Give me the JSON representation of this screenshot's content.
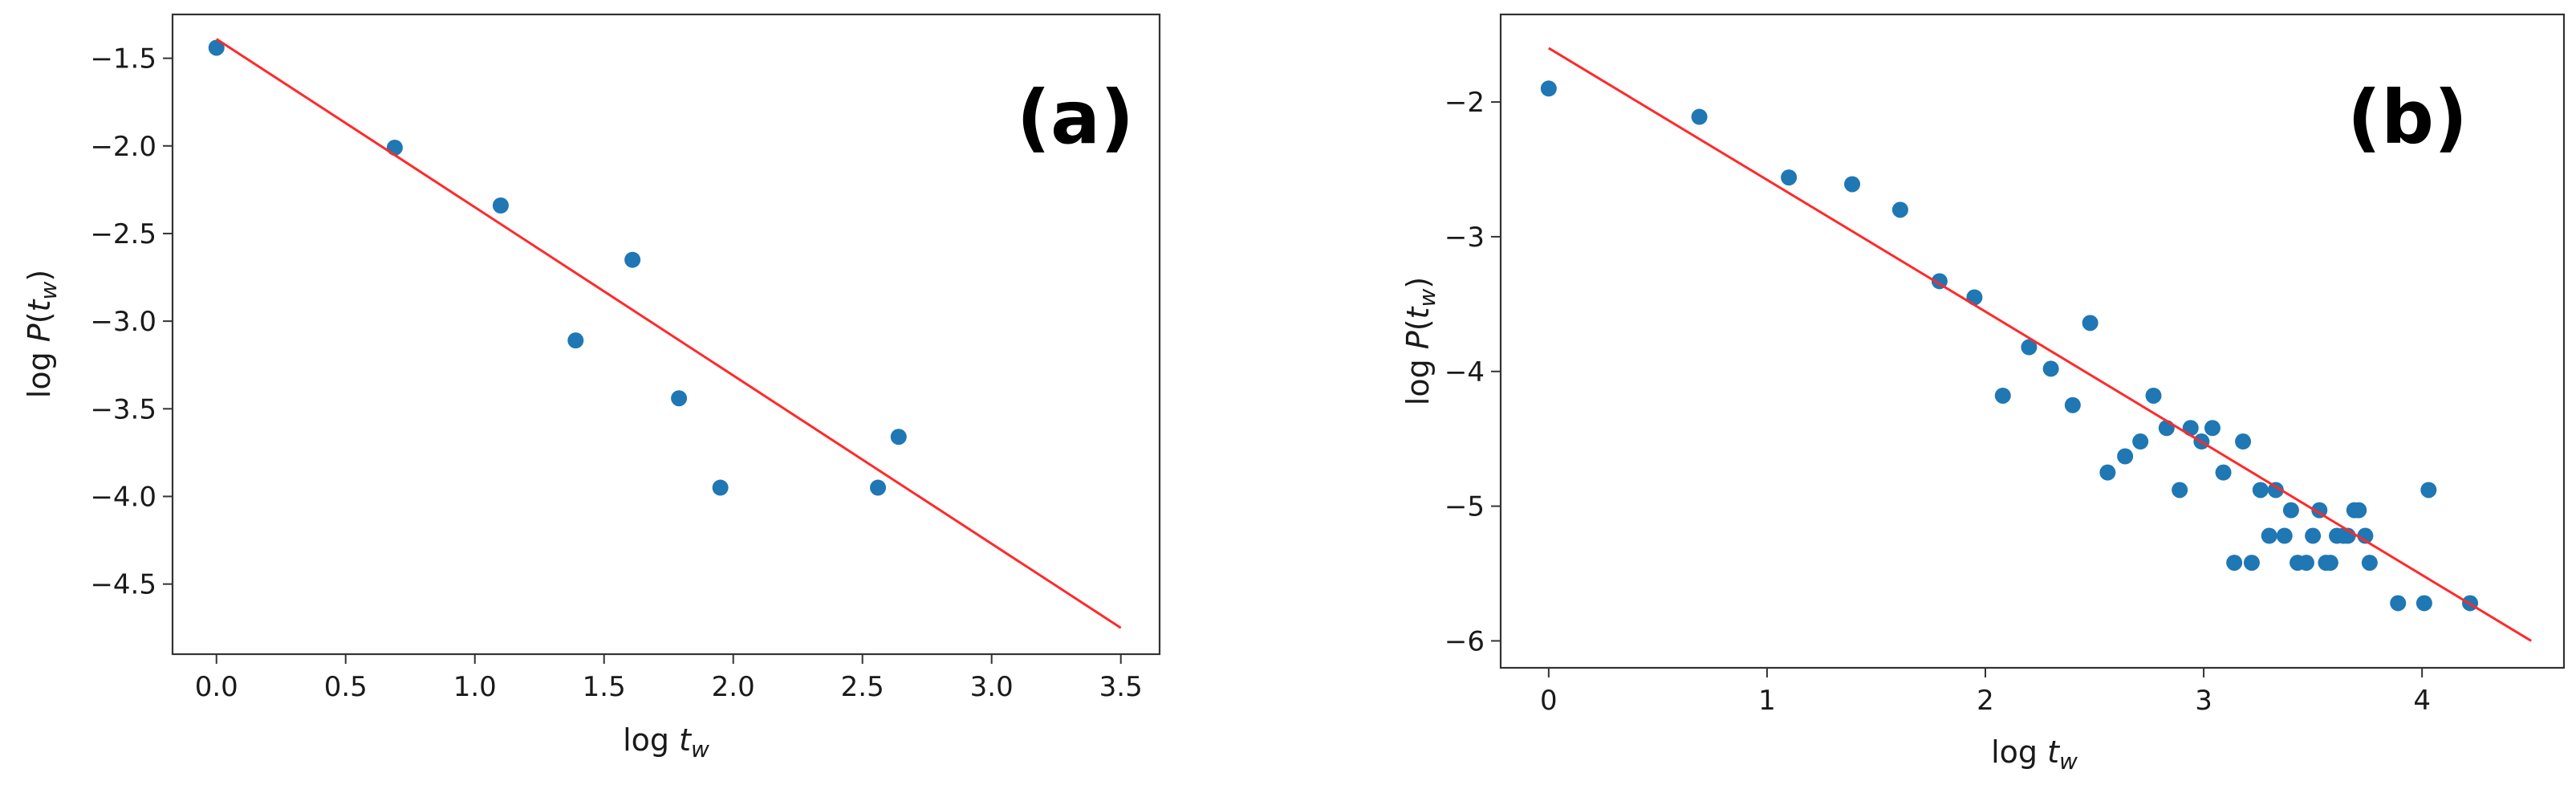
{
  "colors": {
    "points": "#1f77b4",
    "fit_line": "#ff2a2a",
    "axes": "#333333"
  },
  "chart_data": [
    {
      "type": "scatter",
      "panel_label": "(a)",
      "xlabel": "log t_w",
      "ylabel": "log P(t_w)",
      "xlim": [
        -0.17,
        3.65
      ],
      "ylim": [
        -4.9,
        -1.25
      ],
      "xticks": [
        0.0,
        0.5,
        1.0,
        1.5,
        2.0,
        2.5,
        3.0,
        3.5
      ],
      "xtick_labels": [
        "0.0",
        "0.5",
        "1.0",
        "1.5",
        "2.0",
        "2.5",
        "3.0",
        "3.5"
      ],
      "yticks": [
        -1.5,
        -2.0,
        -2.5,
        -3.0,
        -3.5,
        -4.0,
        -4.5
      ],
      "ytick_labels": [
        "−1.5",
        "−2.0",
        "−2.5",
        "−3.0",
        "−3.5",
        "−4.0",
        "−4.5"
      ],
      "grid": false,
      "series": [
        {
          "kind": "points",
          "x": [
            0.0,
            0.69,
            1.1,
            1.39,
            1.61,
            1.79,
            1.95,
            2.56,
            2.64
          ],
          "y": [
            -1.44,
            -2.01,
            -2.34,
            -3.11,
            -2.65,
            -3.44,
            -3.95,
            -3.95,
            -3.66
          ]
        },
        {
          "kind": "fit_line",
          "x": [
            0.0,
            3.5
          ],
          "y": [
            -1.39,
            -4.75
          ]
        }
      ]
    },
    {
      "type": "scatter",
      "panel_label": "(b)",
      "xlabel": "log t_w",
      "ylabel": "log P(t_w)",
      "xlim": [
        -0.22,
        4.65
      ],
      "ylim": [
        -6.2,
        -1.35
      ],
      "xticks": [
        0,
        1,
        2,
        3,
        4
      ],
      "xtick_labels": [
        "0",
        "1",
        "2",
        "3",
        "4"
      ],
      "yticks": [
        -2,
        -3,
        -4,
        -5,
        -6
      ],
      "ytick_labels": [
        "−2",
        "−3",
        "−4",
        "−5",
        "−6"
      ],
      "grid": false,
      "series": [
        {
          "kind": "points",
          "x": [
            0.0,
            0.69,
            1.1,
            1.39,
            1.61,
            1.79,
            1.95,
            2.08,
            2.2,
            2.3,
            2.4,
            2.48,
            2.56,
            2.64,
            2.71,
            2.77,
            2.83,
            2.89,
            2.94,
            2.99,
            3.04,
            3.09,
            3.14,
            3.18,
            3.22,
            3.26,
            3.3,
            3.33,
            3.37,
            3.4,
            3.43,
            3.47,
            3.5,
            3.53,
            3.56,
            3.58,
            3.61,
            3.64,
            3.66,
            3.69,
            3.71,
            3.74,
            3.76,
            3.89,
            4.01,
            4.03,
            4.22
          ],
          "y": [
            -1.9,
            -2.11,
            -2.56,
            -2.61,
            -2.8,
            -3.33,
            -3.45,
            -4.18,
            -3.82,
            -3.98,
            -4.25,
            -3.64,
            -4.75,
            -4.63,
            -4.52,
            -4.18,
            -4.42,
            -4.88,
            -4.42,
            -4.52,
            -4.42,
            -4.75,
            -5.42,
            -4.52,
            -5.42,
            -4.88,
            -5.22,
            -4.88,
            -5.22,
            -5.03,
            -5.42,
            -5.42,
            -5.22,
            -5.03,
            -5.42,
            -5.42,
            -5.22,
            -5.22,
            -5.22,
            -5.03,
            -5.03,
            -5.22,
            -5.42,
            -5.72,
            -5.72,
            -4.88,
            -5.72
          ]
        },
        {
          "kind": "fit_line",
          "x": [
            0.0,
            4.5
          ],
          "y": [
            -1.6,
            -6.0
          ]
        }
      ]
    }
  ]
}
